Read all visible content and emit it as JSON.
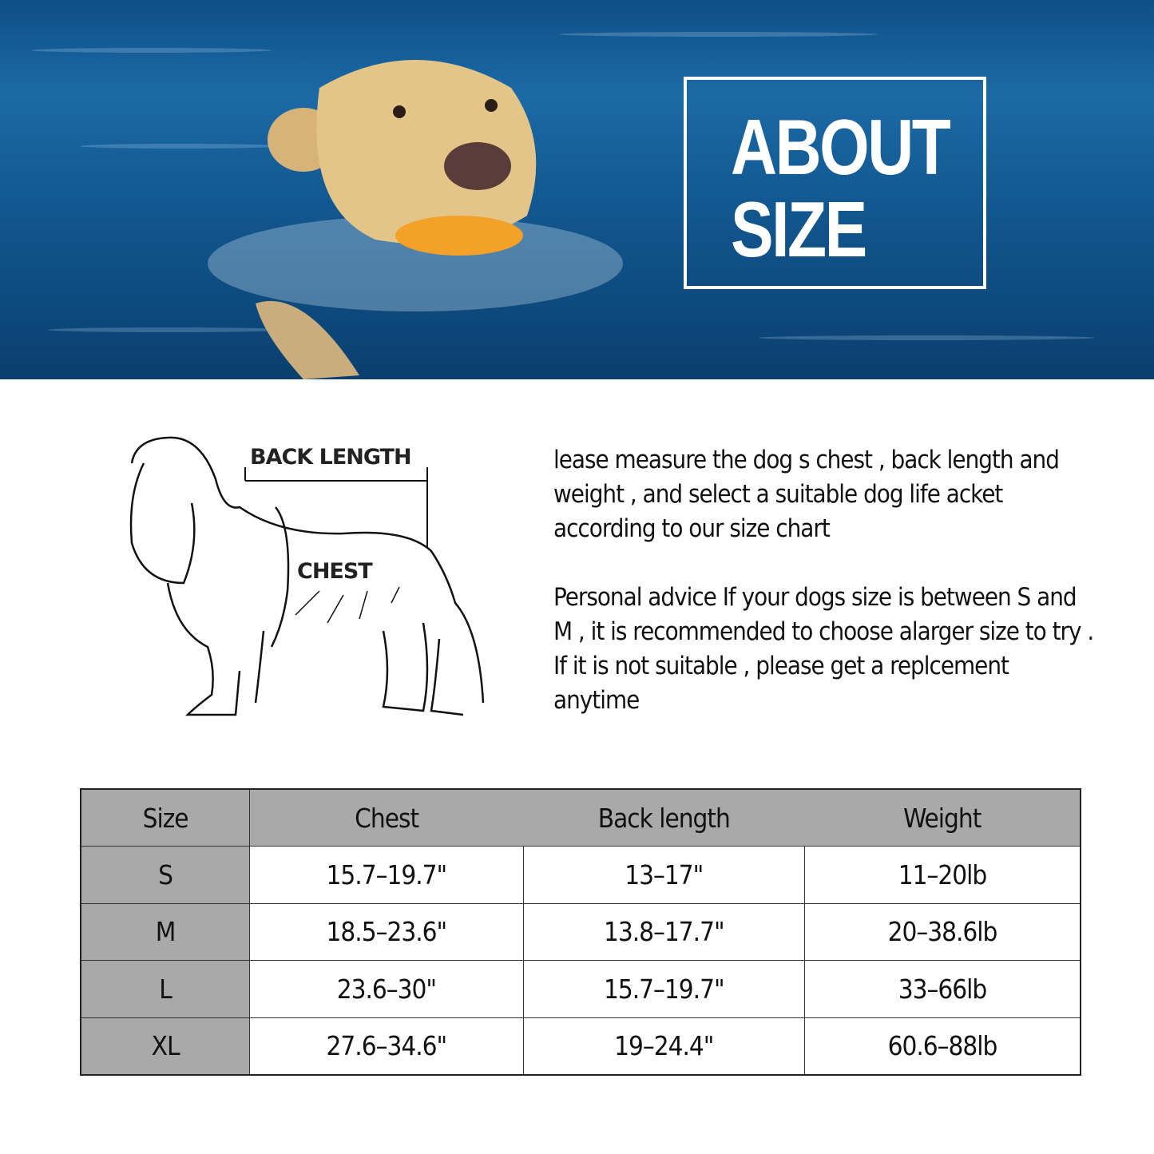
{
  "banner": {
    "title_line1": "ABOUT",
    "title_line2": "SIZE"
  },
  "diagram": {
    "back_length_label": "BACK LENGTH",
    "chest_label": "CHEST"
  },
  "info": {
    "paragraph1": "lease measure the dog s chest , back length and weight , and select a suitable dog life acket according to our size chart",
    "paragraph2": "Personal advice If your dogs size is between S and M , it is recommended to choose alarger size to try . If it is not suitable , please get a replcement anytime"
  },
  "size_table": {
    "headers": [
      "Size",
      "Chest",
      "Back length",
      "Weight"
    ],
    "rows": [
      [
        "S",
        "15.7–19.7\"",
        "13–17\"",
        "11–20lb"
      ],
      [
        "M",
        "18.5–23.6\"",
        "13.8–17.7\"",
        "20–38.6lb"
      ],
      [
        "L",
        "23.6–30\"",
        "15.7–19.7\"",
        "33–66lb"
      ],
      [
        "XL",
        "27.6–34.6\"",
        "19–24.4\"",
        "60.6–88lb"
      ]
    ]
  },
  "colors": {
    "header_gray": "#a9a9a9",
    "water_blue": "#12578f"
  }
}
